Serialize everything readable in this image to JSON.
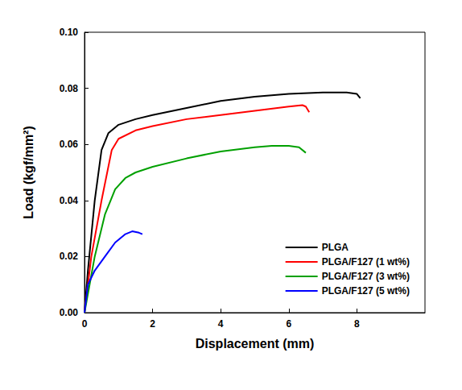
{
  "chart_data": {
    "type": "line",
    "x_label": "Displacement (mm)",
    "y_label": "Load (kgf/mm²)",
    "xlim": [
      0,
      10
    ],
    "xticks": [
      0,
      2,
      4,
      6,
      8
    ],
    "ylim": [
      0,
      0.1
    ],
    "yticks": [
      {
        "value": 0,
        "label": "0.00"
      },
      {
        "value": 0.02,
        "label": "0.02"
      },
      {
        "value": 0.04,
        "label": "0.04"
      },
      {
        "value": 0.06,
        "label": "0.06"
      },
      {
        "value": 0.08,
        "label": "0.08"
      },
      {
        "value": 0.1,
        "label": "0.10"
      }
    ],
    "grid": false,
    "legend": "lower right",
    "marker": "none",
    "series": [
      {
        "name": "PLGA",
        "color": "#000000",
        "x": [
          0,
          0.1,
          0.3,
          0.5,
          0.7,
          1,
          1.5,
          2,
          3,
          4,
          5,
          6,
          7,
          7.7,
          8,
          8.1
        ],
        "values": [
          0,
          0.015,
          0.04,
          0.058,
          0.064,
          0.067,
          0.069,
          0.0705,
          0.073,
          0.0755,
          0.077,
          0.078,
          0.0785,
          0.0785,
          0.078,
          0.0765
        ]
      },
      {
        "name": "PLGA/F127 (1 wt%)",
        "color": "#ff0000",
        "x": [
          0,
          0.2,
          0.5,
          0.8,
          1,
          1.5,
          2,
          3,
          4,
          5,
          6,
          6.4,
          6.5,
          6.6
        ],
        "values": [
          0,
          0.02,
          0.04,
          0.058,
          0.062,
          0.065,
          0.0665,
          0.069,
          0.0705,
          0.072,
          0.0735,
          0.074,
          0.0735,
          0.0715
        ]
      },
      {
        "name": "PLGA/F127 (3 wt%)",
        "color": "#00a000",
        "x": [
          0,
          0.3,
          0.6,
          0.9,
          1.2,
          1.5,
          2,
          3,
          4,
          5,
          5.5,
          6,
          6.3,
          6.5
        ],
        "values": [
          0,
          0.02,
          0.035,
          0.044,
          0.048,
          0.05,
          0.052,
          0.055,
          0.0575,
          0.059,
          0.0595,
          0.0595,
          0.059,
          0.057
        ]
      },
      {
        "name": "PLGA/F127 (5 wt%)",
        "color": "#0000ff",
        "x": [
          0,
          0.1,
          0.3,
          0.6,
          0.9,
          1.2,
          1.4,
          1.6,
          1.7
        ],
        "values": [
          0,
          0.01,
          0.015,
          0.02,
          0.025,
          0.028,
          0.029,
          0.0285,
          0.028
        ]
      }
    ]
  }
}
